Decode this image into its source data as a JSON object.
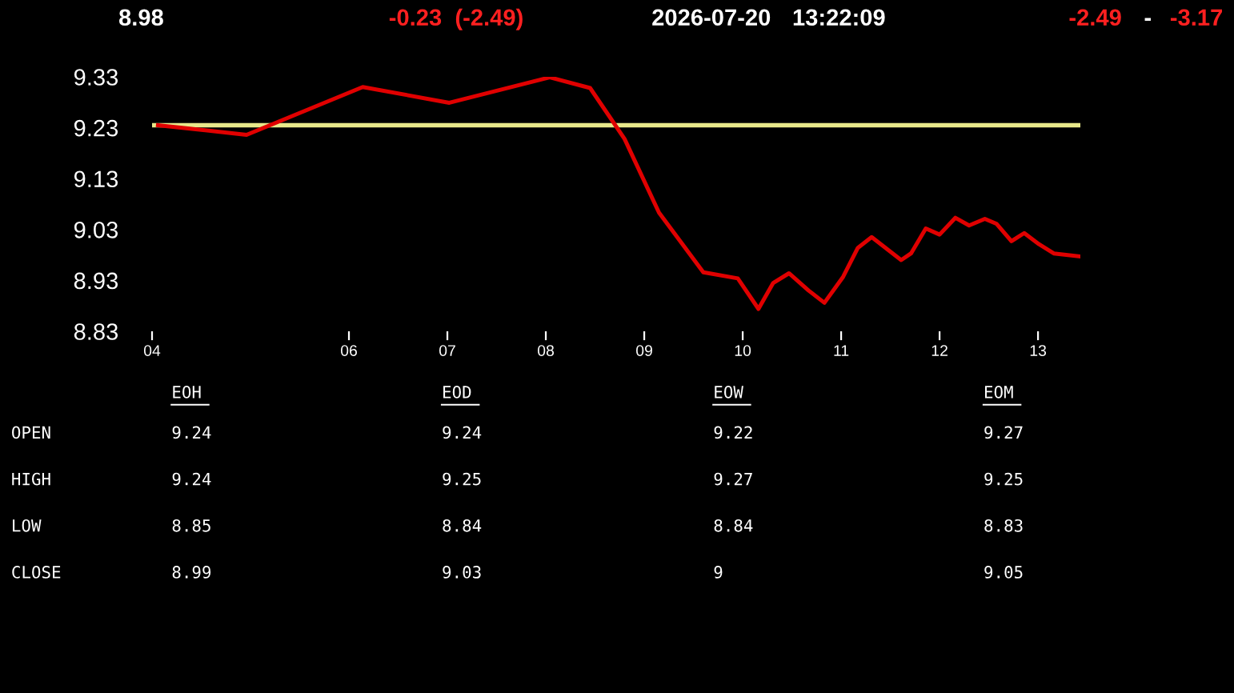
{
  "chart_data": [
    {
      "type": "line",
      "series": [
        {
          "color": "#e00000",
          "x": [
            4.06,
            4.96,
            6.14,
            7.02,
            8.04,
            8.45,
            8.8,
            9.15,
            9.6,
            9.95,
            10.16,
            10.31,
            10.47,
            10.67,
            10.83,
            11.02,
            11.17,
            11.31,
            11.61,
            11.71,
            11.86,
            12.0,
            12.16,
            12.3,
            12.46,
            12.58,
            12.73,
            12.86,
            13.01,
            13.16,
            13.43
          ],
          "values": [
            9.235,
            9.216,
            9.31,
            9.279,
            9.329,
            9.308,
            9.208,
            9.063,
            8.946,
            8.934,
            8.874,
            8.925,
            8.944,
            8.91,
            8.886,
            8.937,
            8.994,
            9.015,
            8.97,
            8.983,
            9.032,
            9.02,
            9.053,
            9.038,
            9.051,
            9.041,
            9.007,
            9.023,
            9.001,
            8.983,
            8.977
          ]
        }
      ],
      "ref_lines": [
        {
          "axis": "y",
          "value": 9.235,
          "color": "#e8e88a"
        }
      ],
      "xlim": [
        4,
        13.43
      ],
      "xticks": [
        {
          "value": 4,
          "label": "04"
        },
        {
          "value": 6,
          "label": "06"
        },
        {
          "value": 7,
          "label": "07"
        },
        {
          "value": 8,
          "label": "08"
        },
        {
          "value": 9,
          "label": "09"
        },
        {
          "value": 10,
          "label": "10"
        },
        11,
        12,
        13
      ],
      "ylim": [
        8.83,
        9.33
      ],
      "yticks": [
        8.83,
        8.93,
        9.03,
        9.13,
        9.23,
        9.33
      ],
      "grid": false,
      "legend": false,
      "annotations": [
        "8.98",
        "-0.23  (-2.49)",
        "2026-07-20",
        "13:22:09",
        "-2.49",
        "-",
        "-3.17"
      ]
    },
    {
      "type": "other",
      "categories": [
        "EOH",
        "EOD",
        "EOW",
        "EOM"
      ],
      "y_categories": [
        "OPEN",
        "HIGH",
        "LOW",
        "CLOSE"
      ],
      "cell_labels": [
        [
          "9.24",
          "9.24",
          "9.22",
          "9.27"
        ],
        [
          "9.24",
          "9.25",
          "9.27",
          "9.25"
        ],
        [
          "8.85",
          "8.84",
          "8.84",
          "8.83"
        ],
        [
          "8.99",
          "9.03",
          "9",
          "9.05"
        ]
      ]
    }
  ]
}
